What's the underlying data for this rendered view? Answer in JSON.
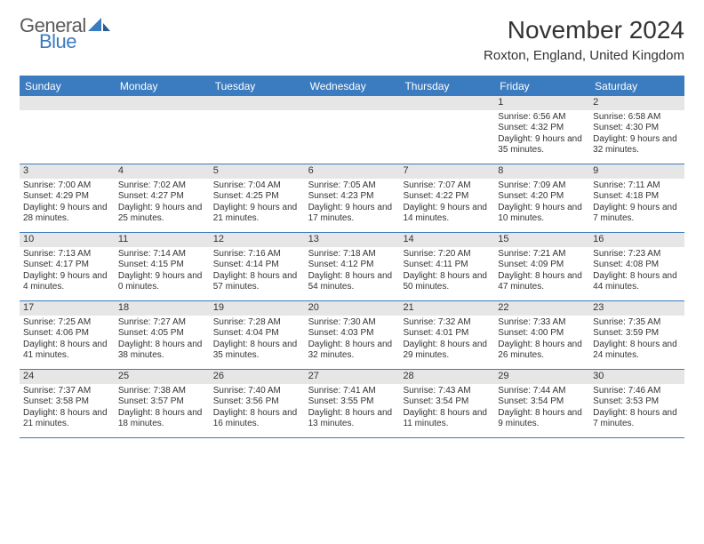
{
  "logo": {
    "word1": "General",
    "word2": "Blue"
  },
  "title": "November 2024",
  "location": "Roxton, England, United Kingdom",
  "colors": {
    "accent": "#3b7bbf",
    "header_text": "#ffffff",
    "bar_bg": "#e6e6e6",
    "text": "#333333",
    "logo_gray": "#5a5a5a"
  },
  "day_names": [
    "Sunday",
    "Monday",
    "Tuesday",
    "Wednesday",
    "Thursday",
    "Friday",
    "Saturday"
  ],
  "weeks": [
    [
      {
        "blank": true
      },
      {
        "blank": true
      },
      {
        "blank": true
      },
      {
        "blank": true
      },
      {
        "blank": true
      },
      {
        "n": "1",
        "sr": "6:56 AM",
        "ss": "4:32 PM",
        "dl": "9 hours and 35 minutes."
      },
      {
        "n": "2",
        "sr": "6:58 AM",
        "ss": "4:30 PM",
        "dl": "9 hours and 32 minutes."
      }
    ],
    [
      {
        "n": "3",
        "sr": "7:00 AM",
        "ss": "4:29 PM",
        "dl": "9 hours and 28 minutes."
      },
      {
        "n": "4",
        "sr": "7:02 AM",
        "ss": "4:27 PM",
        "dl": "9 hours and 25 minutes."
      },
      {
        "n": "5",
        "sr": "7:04 AM",
        "ss": "4:25 PM",
        "dl": "9 hours and 21 minutes."
      },
      {
        "n": "6",
        "sr": "7:05 AM",
        "ss": "4:23 PM",
        "dl": "9 hours and 17 minutes."
      },
      {
        "n": "7",
        "sr": "7:07 AM",
        "ss": "4:22 PM",
        "dl": "9 hours and 14 minutes."
      },
      {
        "n": "8",
        "sr": "7:09 AM",
        "ss": "4:20 PM",
        "dl": "9 hours and 10 minutes."
      },
      {
        "n": "9",
        "sr": "7:11 AM",
        "ss": "4:18 PM",
        "dl": "9 hours and 7 minutes."
      }
    ],
    [
      {
        "n": "10",
        "sr": "7:13 AM",
        "ss": "4:17 PM",
        "dl": "9 hours and 4 minutes."
      },
      {
        "n": "11",
        "sr": "7:14 AM",
        "ss": "4:15 PM",
        "dl": "9 hours and 0 minutes."
      },
      {
        "n": "12",
        "sr": "7:16 AM",
        "ss": "4:14 PM",
        "dl": "8 hours and 57 minutes."
      },
      {
        "n": "13",
        "sr": "7:18 AM",
        "ss": "4:12 PM",
        "dl": "8 hours and 54 minutes."
      },
      {
        "n": "14",
        "sr": "7:20 AM",
        "ss": "4:11 PM",
        "dl": "8 hours and 50 minutes."
      },
      {
        "n": "15",
        "sr": "7:21 AM",
        "ss": "4:09 PM",
        "dl": "8 hours and 47 minutes."
      },
      {
        "n": "16",
        "sr": "7:23 AM",
        "ss": "4:08 PM",
        "dl": "8 hours and 44 minutes."
      }
    ],
    [
      {
        "n": "17",
        "sr": "7:25 AM",
        "ss": "4:06 PM",
        "dl": "8 hours and 41 minutes."
      },
      {
        "n": "18",
        "sr": "7:27 AM",
        "ss": "4:05 PM",
        "dl": "8 hours and 38 minutes."
      },
      {
        "n": "19",
        "sr": "7:28 AM",
        "ss": "4:04 PM",
        "dl": "8 hours and 35 minutes."
      },
      {
        "n": "20",
        "sr": "7:30 AM",
        "ss": "4:03 PM",
        "dl": "8 hours and 32 minutes."
      },
      {
        "n": "21",
        "sr": "7:32 AM",
        "ss": "4:01 PM",
        "dl": "8 hours and 29 minutes."
      },
      {
        "n": "22",
        "sr": "7:33 AM",
        "ss": "4:00 PM",
        "dl": "8 hours and 26 minutes."
      },
      {
        "n": "23",
        "sr": "7:35 AM",
        "ss": "3:59 PM",
        "dl": "8 hours and 24 minutes."
      }
    ],
    [
      {
        "n": "24",
        "sr": "7:37 AM",
        "ss": "3:58 PM",
        "dl": "8 hours and 21 minutes."
      },
      {
        "n": "25",
        "sr": "7:38 AM",
        "ss": "3:57 PM",
        "dl": "8 hours and 18 minutes."
      },
      {
        "n": "26",
        "sr": "7:40 AM",
        "ss": "3:56 PM",
        "dl": "8 hours and 16 minutes."
      },
      {
        "n": "27",
        "sr": "7:41 AM",
        "ss": "3:55 PM",
        "dl": "8 hours and 13 minutes."
      },
      {
        "n": "28",
        "sr": "7:43 AM",
        "ss": "3:54 PM",
        "dl": "8 hours and 11 minutes."
      },
      {
        "n": "29",
        "sr": "7:44 AM",
        "ss": "3:54 PM",
        "dl": "8 hours and 9 minutes."
      },
      {
        "n": "30",
        "sr": "7:46 AM",
        "ss": "3:53 PM",
        "dl": "8 hours and 7 minutes."
      }
    ]
  ],
  "labels": {
    "sunrise": "Sunrise:",
    "sunset": "Sunset:",
    "daylight": "Daylight:"
  }
}
